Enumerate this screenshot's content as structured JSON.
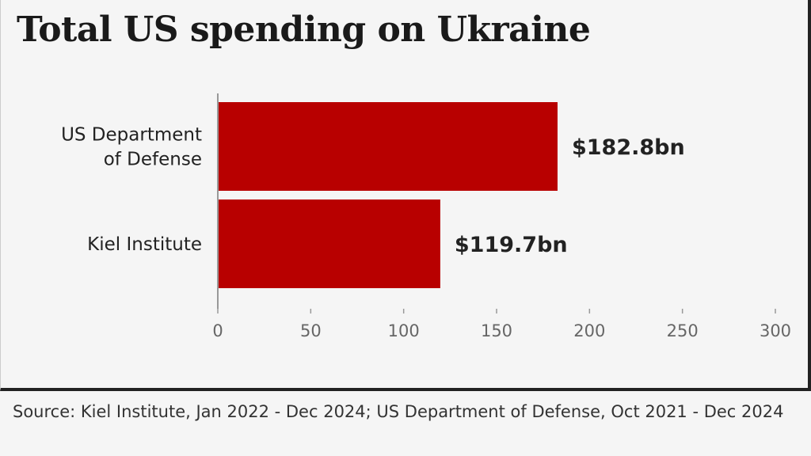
{
  "chart_data": {
    "type": "bar",
    "orientation": "horizontal",
    "title": "Total US spending on Ukraine",
    "categories": [
      "US Department of Defense",
      "Kiel Institute"
    ],
    "category_lines": [
      [
        "US Department",
        "of Defense"
      ],
      [
        "Kiel Institute"
      ]
    ],
    "values": [
      182.8,
      119.7
    ],
    "data_labels": [
      "$182.8bn",
      "$119.7bn"
    ],
    "xlim": [
      0,
      300
    ],
    "xticks": [
      0,
      50,
      100,
      150,
      200,
      250,
      300
    ],
    "xlabel": "",
    "ylabel": "",
    "grid": false,
    "legend": "none",
    "bar_color": "#b80000",
    "source": "Source: Kiel Institute, Jan 2022 - Dec 2024; US Department of Defense, Oct 2021 - Dec 2024"
  }
}
